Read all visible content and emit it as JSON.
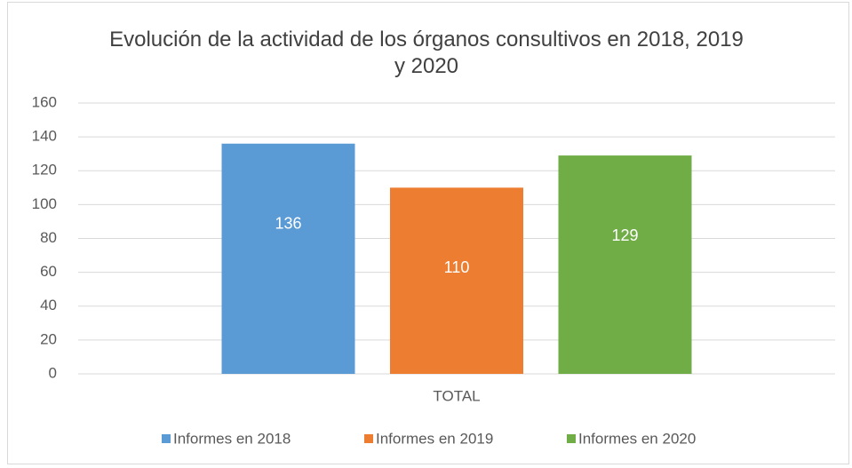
{
  "chart_data": {
    "type": "bar",
    "title": "Evolución de la actividad de los órganos consultivos en 2018, 2019 y 2020",
    "categories": [
      "TOTAL"
    ],
    "series": [
      {
        "name": "Informes en 2018",
        "color": "#5b9bd5",
        "values": [
          136
        ]
      },
      {
        "name": "Informes en 2019",
        "color": "#ed7d31",
        "values": [
          110
        ]
      },
      {
        "name": "Informes en 2020",
        "color": "#70ad47",
        "values": [
          129
        ]
      }
    ],
    "ylim": [
      0,
      160
    ],
    "yticks": [
      0,
      20,
      40,
      60,
      80,
      100,
      120,
      140,
      160
    ],
    "grid": true,
    "legend": "bottom"
  }
}
